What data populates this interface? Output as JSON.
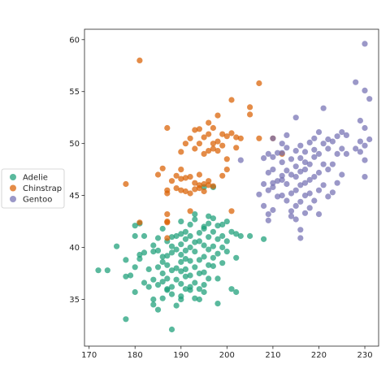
{
  "chart_data": {
    "type": "scatter",
    "title": "",
    "xlabel": "",
    "ylabel": "",
    "xlim": [
      169,
      233
    ],
    "ylim": [
      30.5,
      61
    ],
    "x_ticks": [
      170,
      180,
      190,
      200,
      210,
      220,
      230
    ],
    "y_ticks": [
      35,
      40,
      45,
      50,
      55,
      60
    ],
    "grid": false,
    "legend_position": "outside-left",
    "series": [
      {
        "name": "Adelie",
        "color": "#1b9e77",
        "points": [
          [
            172,
            37.8
          ],
          [
            174,
            37.8
          ],
          [
            176,
            40.1
          ],
          [
            178,
            33.1
          ],
          [
            178,
            37.2
          ],
          [
            178,
            38.8
          ],
          [
            179,
            37.3
          ],
          [
            180,
            35.7
          ],
          [
            180,
            38.1
          ],
          [
            180,
            41.1
          ],
          [
            180,
            42.1
          ],
          [
            181,
            38.9
          ],
          [
            181,
            39.3
          ],
          [
            181,
            42.3
          ],
          [
            182,
            36.6
          ],
          [
            182,
            39.5
          ],
          [
            182,
            41.1
          ],
          [
            183,
            36.2
          ],
          [
            183,
            37.9
          ],
          [
            184,
            35.0
          ],
          [
            184,
            36.9
          ],
          [
            184,
            39.6
          ],
          [
            184,
            40.2
          ],
          [
            184,
            34.5
          ],
          [
            185,
            36.4
          ],
          [
            185,
            38.1
          ],
          [
            185,
            39.7
          ],
          [
            185,
            40.9
          ],
          [
            185,
            34.0
          ],
          [
            186,
            35.1
          ],
          [
            186,
            37.5
          ],
          [
            186,
            38.6
          ],
          [
            186,
            39.1
          ],
          [
            186,
            41.8
          ],
          [
            186,
            36.7
          ],
          [
            187,
            36.0
          ],
          [
            187,
            37.0
          ],
          [
            187,
            38.3
          ],
          [
            187,
            39.2
          ],
          [
            187,
            40.6
          ],
          [
            187,
            35.9
          ],
          [
            188,
            32.1
          ],
          [
            188,
            36.2
          ],
          [
            188,
            37.8
          ],
          [
            188,
            39.5
          ],
          [
            188,
            40.1
          ],
          [
            188,
            41.0
          ],
          [
            188,
            35.5
          ],
          [
            189,
            36.9
          ],
          [
            189,
            38.0
          ],
          [
            189,
            39.8
          ],
          [
            189,
            41.1
          ],
          [
            189,
            34.4
          ],
          [
            190,
            35.3
          ],
          [
            190,
            36.5
          ],
          [
            190,
            37.7
          ],
          [
            190,
            38.6
          ],
          [
            190,
            39.3
          ],
          [
            190,
            40.3
          ],
          [
            190,
            41.3
          ],
          [
            190,
            42.5
          ],
          [
            190,
            35.0
          ],
          [
            191,
            36.0
          ],
          [
            191,
            37.2
          ],
          [
            191,
            38.9
          ],
          [
            191,
            39.7
          ],
          [
            191,
            40.8
          ],
          [
            191,
            41.5
          ],
          [
            191,
            37.9
          ],
          [
            192,
            35.9
          ],
          [
            192,
            37.3
          ],
          [
            192,
            38.7
          ],
          [
            192,
            40.0
          ],
          [
            192,
            41.1
          ],
          [
            192,
            42.2
          ],
          [
            192,
            36.2
          ],
          [
            193,
            36.6
          ],
          [
            193,
            38.1
          ],
          [
            193,
            39.6
          ],
          [
            193,
            40.5
          ],
          [
            193,
            42.7
          ],
          [
            193,
            43.2
          ],
          [
            193,
            35.1
          ],
          [
            194,
            36.0
          ],
          [
            194,
            37.5
          ],
          [
            194,
            38.8
          ],
          [
            194,
            40.6
          ],
          [
            194,
            41.4
          ],
          [
            194,
            35.0
          ],
          [
            195,
            35.7
          ],
          [
            195,
            37.6
          ],
          [
            195,
            39.1
          ],
          [
            195,
            40.2
          ],
          [
            195,
            41.8
          ],
          [
            195,
            42.0
          ],
          [
            195,
            45.8
          ],
          [
            195,
            36.4
          ],
          [
            196,
            38.3
          ],
          [
            196,
            39.8
          ],
          [
            196,
            41.0
          ],
          [
            196,
            42.3
          ],
          [
            196,
            43.0
          ],
          [
            196,
            37.0
          ],
          [
            197,
            38.2
          ],
          [
            197,
            40.1
          ],
          [
            197,
            41.5
          ],
          [
            197,
            42.8
          ],
          [
            197,
            45.8
          ],
          [
            197,
            39.0
          ],
          [
            198,
            37.0
          ],
          [
            198,
            39.4
          ],
          [
            198,
            40.8
          ],
          [
            198,
            42.1
          ],
          [
            198,
            34.6
          ],
          [
            199,
            38.5
          ],
          [
            199,
            40.0
          ],
          [
            199,
            41.1
          ],
          [
            199,
            42.2
          ],
          [
            200,
            39.6
          ],
          [
            200,
            40.6
          ],
          [
            200,
            42.5
          ],
          [
            201,
            36.0
          ],
          [
            201,
            41.5
          ],
          [
            202,
            35.7
          ],
          [
            202,
            39.0
          ],
          [
            202,
            41.3
          ],
          [
            203,
            41.1
          ],
          [
            205,
            41.1
          ],
          [
            208,
            40.8
          ]
        ]
      },
      {
        "name": "Chinstrap",
        "color": "#d95f02",
        "points": [
          [
            178,
            46.1
          ],
          [
            181,
            58.0
          ],
          [
            181,
            42.4
          ],
          [
            185,
            47.0
          ],
          [
            186,
            47.6
          ],
          [
            187,
            40.9
          ],
          [
            187,
            42.5
          ],
          [
            187,
            42.4
          ],
          [
            187,
            43.2
          ],
          [
            187,
            45.2
          ],
          [
            187,
            45.5
          ],
          [
            187,
            51.5
          ],
          [
            188,
            46.4
          ],
          [
            189,
            46.9
          ],
          [
            189,
            45.7
          ],
          [
            190,
            45.5
          ],
          [
            190,
            46.6
          ],
          [
            190,
            47.5
          ],
          [
            190,
            49.2
          ],
          [
            191,
            45.4
          ],
          [
            191,
            46.7
          ],
          [
            191,
            50.0
          ],
          [
            192,
            43.5
          ],
          [
            192,
            45.2
          ],
          [
            192,
            46.8
          ],
          [
            192,
            50.5
          ],
          [
            193,
            46.2
          ],
          [
            193,
            49.5
          ],
          [
            193,
            51.3
          ],
          [
            193,
            45.6
          ],
          [
            194,
            45.7
          ],
          [
            194,
            46.0
          ],
          [
            194,
            47.0
          ],
          [
            194,
            50.0
          ],
          [
            194,
            51.4
          ],
          [
            195,
            45.4
          ],
          [
            195,
            46.1
          ],
          [
            195,
            49.0
          ],
          [
            195,
            50.6
          ],
          [
            196,
            46.0
          ],
          [
            196,
            46.4
          ],
          [
            196,
            49.3
          ],
          [
            196,
            50.9
          ],
          [
            196,
            52.0
          ],
          [
            197,
            45.9
          ],
          [
            197,
            49.5
          ],
          [
            197,
            50.0
          ],
          [
            197,
            51.5
          ],
          [
            198,
            49.3
          ],
          [
            198,
            50.2
          ],
          [
            198,
            52.7
          ],
          [
            199,
            46.9
          ],
          [
            199,
            50.9
          ],
          [
            199,
            49.8
          ],
          [
            200,
            47.5
          ],
          [
            200,
            48.5
          ],
          [
            200,
            50.7
          ],
          [
            201,
            51.0
          ],
          [
            201,
            54.2
          ],
          [
            201,
            43.5
          ],
          [
            202,
            49.6
          ],
          [
            202,
            50.6
          ],
          [
            203,
            50.5
          ],
          [
            205,
            52.8
          ],
          [
            205,
            53.5
          ],
          [
            207,
            50.5
          ],
          [
            207,
            55.8
          ],
          [
            210,
            50.5
          ],
          [
            212,
            49.0
          ]
        ]
      },
      {
        "name": "Gentoo",
        "color": "#7570b3",
        "points": [
          [
            203,
            48.4
          ],
          [
            207,
            45.1
          ],
          [
            208,
            44.0
          ],
          [
            208,
            46.1
          ],
          [
            208,
            48.6
          ],
          [
            209,
            45.5
          ],
          [
            209,
            47.2
          ],
          [
            209,
            49.0
          ],
          [
            209,
            43.2
          ],
          [
            209,
            42.6
          ],
          [
            210,
            46.2
          ],
          [
            210,
            47.5
          ],
          [
            210,
            48.7
          ],
          [
            210,
            45.8
          ],
          [
            210,
            43.6
          ],
          [
            210,
            50.5
          ],
          [
            211,
            44.9
          ],
          [
            211,
            46.4
          ],
          [
            211,
            49.1
          ],
          [
            212,
            45.0
          ],
          [
            212,
            46.5
          ],
          [
            212,
            48.2
          ],
          [
            212,
            49.1
          ],
          [
            212,
            46.9
          ],
          [
            212,
            50.0
          ],
          [
            213,
            44.5
          ],
          [
            213,
            46.1
          ],
          [
            213,
            47.4
          ],
          [
            213,
            49.6
          ],
          [
            213,
            50.8
          ],
          [
            214,
            43.5
          ],
          [
            214,
            45.2
          ],
          [
            214,
            47.0
          ],
          [
            214,
            48.5
          ],
          [
            214,
            43.0
          ],
          [
            215,
            42.7
          ],
          [
            215,
            44.0
          ],
          [
            215,
            45.5
          ],
          [
            215,
            46.8
          ],
          [
            215,
            47.8
          ],
          [
            215,
            49.3
          ],
          [
            215,
            52.5
          ],
          [
            216,
            41.7
          ],
          [
            216,
            44.4
          ],
          [
            216,
            46.0
          ],
          [
            216,
            47.3
          ],
          [
            216,
            48.6
          ],
          [
            216,
            49.8
          ],
          [
            216,
            40.9
          ],
          [
            217,
            43.3
          ],
          [
            217,
            45.0
          ],
          [
            217,
            46.2
          ],
          [
            217,
            47.5
          ],
          [
            217,
            49.2
          ],
          [
            217,
            48.2
          ],
          [
            218,
            43.8
          ],
          [
            218,
            45.2
          ],
          [
            218,
            46.5
          ],
          [
            218,
            48.0
          ],
          [
            218,
            50.1
          ],
          [
            219,
            44.5
          ],
          [
            219,
            46.8
          ],
          [
            219,
            48.7
          ],
          [
            219,
            50.5
          ],
          [
            219,
            49.4
          ],
          [
            220,
            43.2
          ],
          [
            220,
            45.5
          ],
          [
            220,
            47.2
          ],
          [
            220,
            49.0
          ],
          [
            220,
            51.1
          ],
          [
            221,
            46.0
          ],
          [
            221,
            48.0
          ],
          [
            221,
            50.0
          ],
          [
            221,
            53.4
          ],
          [
            222,
            44.9
          ],
          [
            222,
            47.5
          ],
          [
            222,
            49.5
          ],
          [
            222,
            50.4
          ],
          [
            223,
            45.3
          ],
          [
            223,
            48.0
          ],
          [
            223,
            50.2
          ],
          [
            224,
            46.2
          ],
          [
            224,
            49.0
          ],
          [
            224,
            50.7
          ],
          [
            225,
            47.0
          ],
          [
            225,
            49.5
          ],
          [
            225,
            51.1
          ],
          [
            226,
            49.0
          ],
          [
            226,
            50.8
          ],
          [
            228,
            55.9
          ],
          [
            228,
            49.5
          ],
          [
            229,
            49.2
          ],
          [
            229,
            50.2
          ],
          [
            229,
            52.2
          ],
          [
            230,
            48.4
          ],
          [
            230,
            49.8
          ],
          [
            230,
            51.5
          ],
          [
            230,
            55.1
          ],
          [
            230,
            59.6
          ],
          [
            230,
            46.8
          ],
          [
            231,
            50.4
          ],
          [
            231,
            54.3
          ]
        ]
      }
    ]
  }
}
